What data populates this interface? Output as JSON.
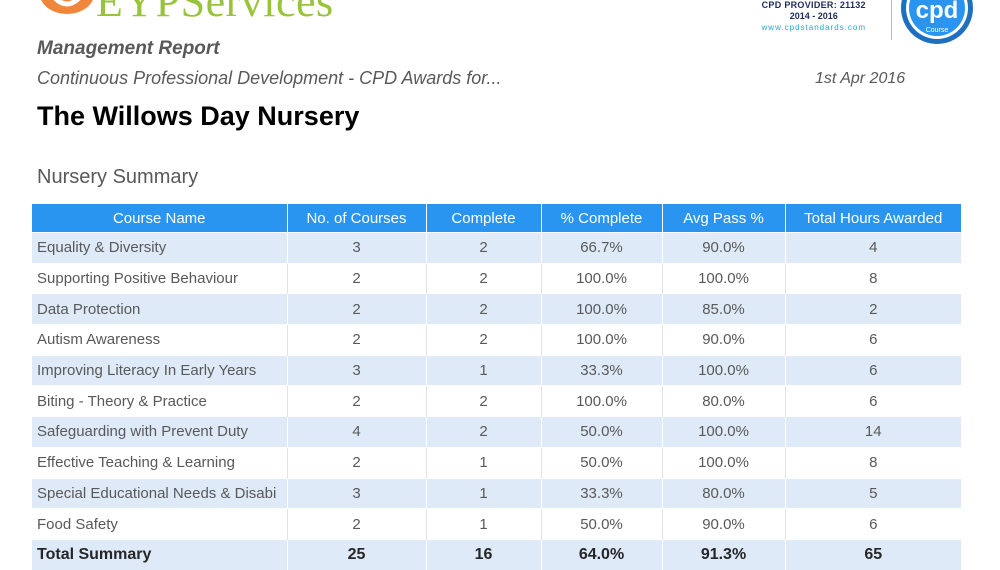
{
  "header": {
    "logo_text": "EYPServices",
    "cpd_provider_line": "CPD PROVIDER: 21132",
    "cpd_years": "2014 - 2016",
    "cpd_website": "www.cpdstandards.com",
    "cpd_badge_text": "cpd",
    "cpd_badge_sub": "Course",
    "report_title": "Management Report",
    "subtitle": "Continuous Professional Development - CPD Awards for...",
    "date": "1st Apr 2016",
    "nursery_name": "The Willows Day Nursery"
  },
  "summary": {
    "section_title": "Nursery Summary",
    "columns": [
      "Course Name",
      "No. of Courses",
      "Complete",
      "% Complete",
      "Avg Pass %",
      "Total Hours Awarded"
    ],
    "rows": [
      [
        "Equality & Diversity",
        "3",
        "2",
        "66.7%",
        "90.0%",
        "4"
      ],
      [
        "Supporting Positive Behaviour",
        "2",
        "2",
        "100.0%",
        "100.0%",
        "8"
      ],
      [
        "Data Protection",
        "2",
        "2",
        "100.0%",
        "85.0%",
        "2"
      ],
      [
        "Autism Awareness",
        "2",
        "2",
        "100.0%",
        "90.0%",
        "6"
      ],
      [
        "Improving Literacy In Early Years",
        "3",
        "1",
        "33.3%",
        "100.0%",
        "6"
      ],
      [
        "Biting - Theory & Practice",
        "2",
        "2",
        "100.0%",
        "80.0%",
        "6"
      ],
      [
        "Safeguarding with Prevent Duty",
        "4",
        "2",
        "50.0%",
        "100.0%",
        "14"
      ],
      [
        "Effective Teaching & Learning",
        "2",
        "1",
        "50.0%",
        "100.0%",
        "8"
      ],
      [
        "Special Educational Needs & Disabi",
        "3",
        "1",
        "33.3%",
        "80.0%",
        "5"
      ],
      [
        "Food Safety",
        "2",
        "1",
        "50.0%",
        "90.0%",
        "6"
      ]
    ],
    "total": [
      "Total Summary",
      "25",
      "16",
      "64.0%",
      "91.3%",
      "65"
    ]
  },
  "colors": {
    "header_blue": "#2a95f0",
    "row_band": "#deeaf7",
    "logo_green": "#9ac33c",
    "logo_orange": "#f0863c"
  },
  "icons": [
    "eyp-logo-icon",
    "cpd-badge-icon"
  ]
}
